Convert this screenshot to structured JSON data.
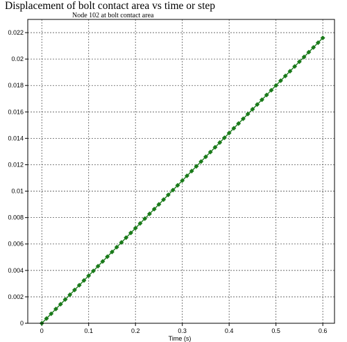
{
  "chart_data": {
    "type": "line",
    "title": "Displacement of bolt contact area vs time  or step",
    "subtitle": "Node 102 at bolt contact area",
    "xlabel": "Time (s)",
    "ylabel": "",
    "xlim": [
      -0.03,
      0.625
    ],
    "ylim": [
      0,
      0.023
    ],
    "xticks": [
      0,
      0.1,
      0.2,
      0.3,
      0.4,
      0.5,
      0.6
    ],
    "xtick_labels": [
      "0",
      "0.1",
      "0.2",
      "0.3",
      "0.4",
      "0.5",
      "0.6"
    ],
    "yticks": [
      0,
      0.002,
      0.004,
      0.006,
      0.008,
      0.01,
      0.012,
      0.014,
      0.016,
      0.018,
      0.02,
      0.022
    ],
    "ytick_labels": [
      "0",
      "0.002",
      "0.004",
      "0.006",
      "0.008",
      "0.01",
      "0.012",
      "0.014",
      "0.016",
      "0.018",
      "0.02",
      "0.022"
    ],
    "grid": true,
    "series": [
      {
        "x_start": 0,
        "x_step": 0.01,
        "count": 61,
        "slope": 0.036,
        "color": "#1a7a1a",
        "marker": "diamond"
      }
    ]
  }
}
